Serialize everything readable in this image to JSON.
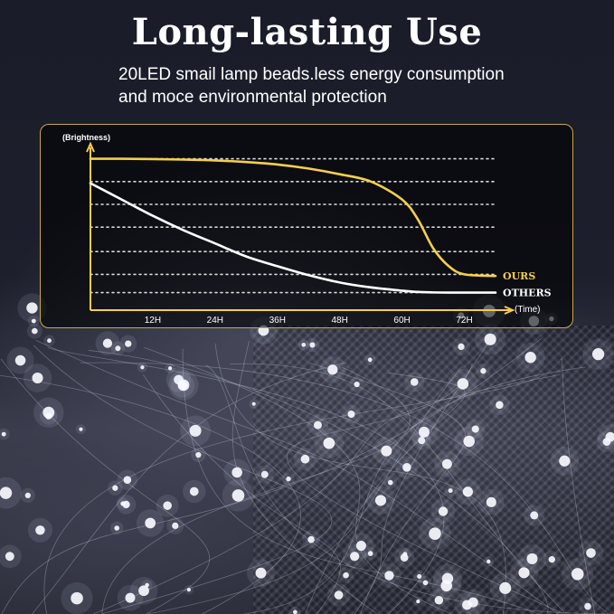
{
  "header": {
    "title": "Long-lasting Use",
    "subtitle_line1": "20LED smail lamp beads.less energy consumption",
    "subtitle_line2": "and moce environmental protection"
  },
  "colors": {
    "ours": "#f5cf4a",
    "others": "#ffffff",
    "panel_border": "#c9a74a",
    "axis": "#f5cf4a"
  },
  "chart_data": {
    "type": "line",
    "title": "",
    "ylabel": "(Brightness)",
    "xlabel": "(Time)",
    "categories": [
      "12H",
      "24H",
      "36H",
      "48H",
      "60H",
      "72H"
    ],
    "x": [
      0,
      6,
      12,
      18,
      24,
      30,
      36,
      42,
      48,
      54,
      60,
      63,
      66,
      69,
      72,
      78
    ],
    "xlim": [
      0,
      78
    ],
    "ylim": [
      0,
      100
    ],
    "grid": "dotted horizontal",
    "series": [
      {
        "name": "OURS",
        "color": "#f5cf4a",
        "values": [
          93,
          93,
          92.8,
          92.5,
          92,
          91,
          89.5,
          87,
          83.5,
          79,
          68,
          56,
          38,
          27,
          22,
          21
        ]
      },
      {
        "name": "OTHERS",
        "color": "#ffffff",
        "values": [
          78,
          68,
          58,
          49,
          41,
          33,
          27,
          21.5,
          17,
          14,
          12,
          11.2,
          10.9,
          10.8,
          10.8,
          10.8
        ]
      }
    ]
  }
}
